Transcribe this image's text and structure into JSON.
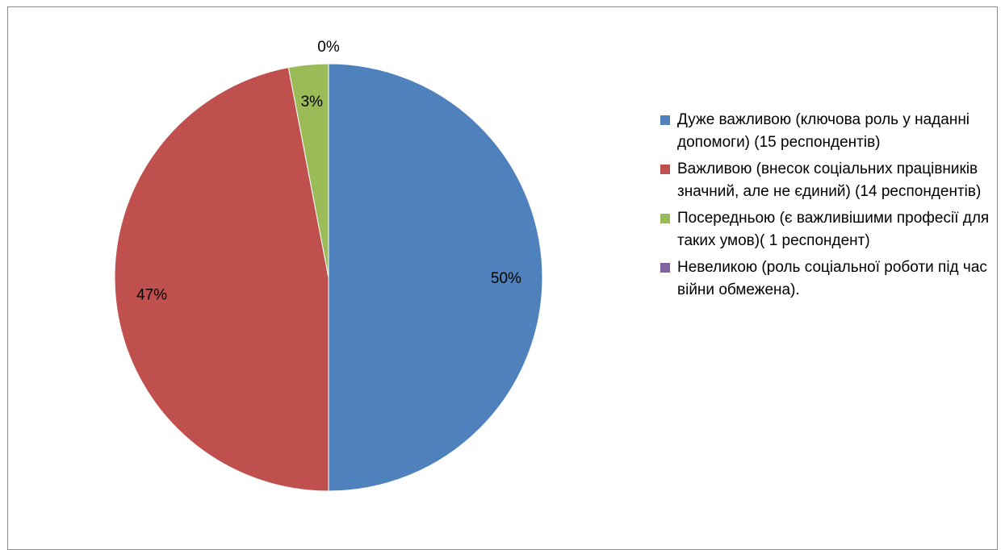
{
  "chart_data": {
    "type": "pie",
    "title": "",
    "slices": [
      {
        "label": "Дуже важливою (ключова роль у наданні допомоги) (15 респондентів)",
        "value": 50,
        "display": "50%",
        "color": "#4F81BD"
      },
      {
        "label": "Важливою (внесок соціальних працівників значний, але не єдиний) (14 респондентів)",
        "value": 47,
        "display": "47%",
        "color": "#C0504D"
      },
      {
        "label": "Посередньою (є важливішими професії для таких умов)( 1 респондент)",
        "value": 3,
        "display": "3%",
        "color": "#9BBB59"
      },
      {
        "label": "Невеликою (роль соціальної роботи під час війни обмежена).",
        "value": 0,
        "display": "0%",
        "color": "#8064A2"
      }
    ],
    "legend_position": "right"
  }
}
